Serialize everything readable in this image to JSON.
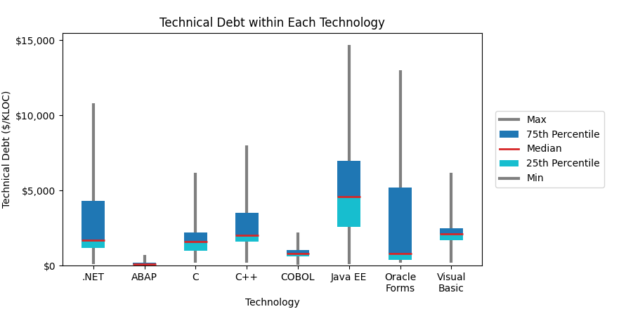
{
  "chart_data": {
    "type": "box",
    "title": "Technical Debt within Each Technology",
    "x_label": "Technology",
    "y_label": "Technical Debt ($/KLOC)",
    "categories": [
      ".NET",
      "ABAP",
      "C",
      "C++",
      "COBOL",
      "Java EE",
      "Oracle\nForms",
      "Visual\nBasic"
    ],
    "series": [
      {
        "name": "Max",
        "color": "#7f7f7f",
        "values": [
          10800,
          700,
          6200,
          8000,
          2200,
          14700,
          13000,
          6200
        ]
      },
      {
        "name": "75th Percentile",
        "color": "#1f77b4",
        "values": [
          4300,
          200,
          2200,
          3500,
          1050,
          7000,
          5200,
          2500
        ]
      },
      {
        "name": "Median",
        "color": "#d62728",
        "values": [
          1700,
          100,
          1600,
          2000,
          800,
          4600,
          800,
          2100
        ]
      },
      {
        "name": "25th Percentile",
        "color": "#17becf",
        "values": [
          1200,
          60,
          1000,
          1600,
          600,
          2600,
          400,
          1700
        ]
      },
      {
        "name": "Min",
        "color": "#7f7f7f",
        "values": [
          100,
          10,
          200,
          200,
          50,
          100,
          200,
          200
        ]
      }
    ],
    "ylim": [
      0,
      15500
    ],
    "yticks": [
      {
        "value": 0,
        "label": "$0"
      },
      {
        "value": 5000,
        "label": "$5,000"
      },
      {
        "value": 10000,
        "label": "$10,000"
      },
      {
        "value": 15000,
        "label": "$15,000"
      }
    ],
    "grid": false,
    "legend": "right"
  }
}
